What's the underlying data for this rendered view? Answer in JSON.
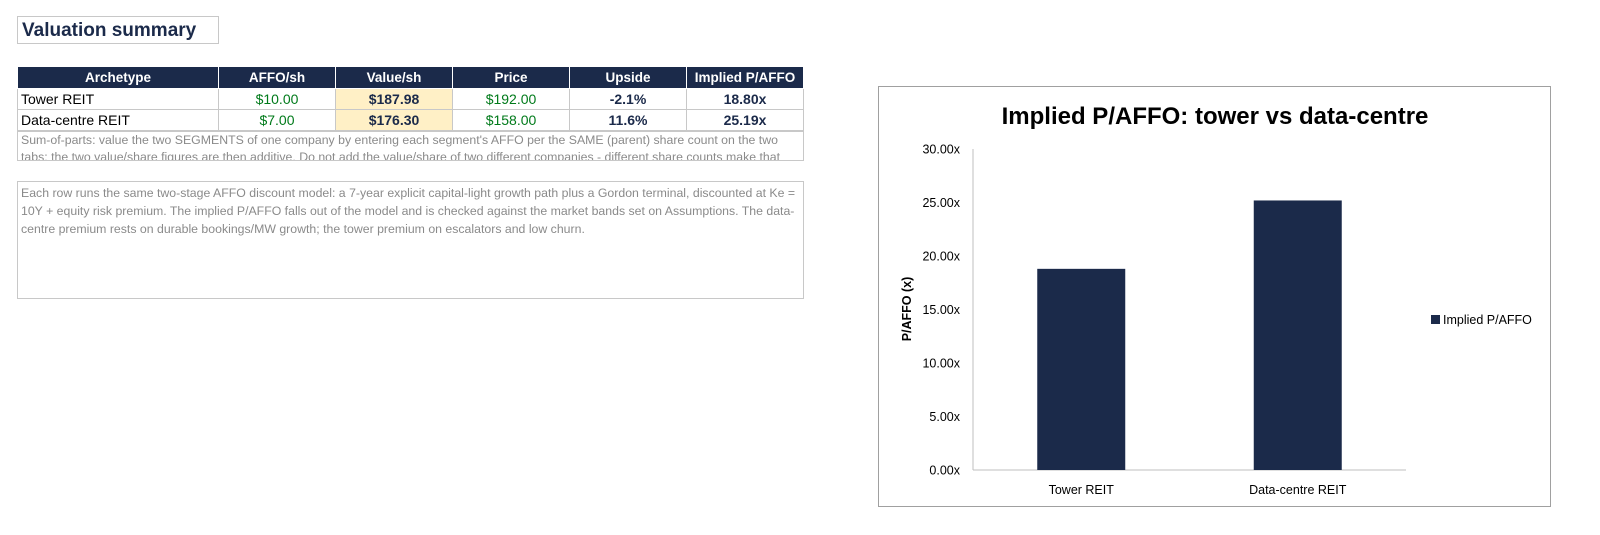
{
  "sheet": {
    "title": "Valuation summary"
  },
  "table": {
    "headers": [
      "Archetype",
      "AFFO/sh",
      "Value/sh",
      "Price",
      "Upside",
      "Implied P/AFFO"
    ],
    "rows": [
      [
        "Tower REIT",
        "$10.00",
        "$187.98",
        "$192.00",
        "-2.1%",
        "18.80x"
      ],
      [
        "Data-centre REIT",
        "$7.00",
        "$176.30",
        "$158.00",
        "11.6%",
        "25.19x"
      ]
    ]
  },
  "notes": {
    "sum_of_parts": "Sum-of-parts: value the two SEGMENTS of one company by entering each segment's AFFO per the SAME (parent) share count on the two tabs; the two value/share figures are then additive. Do not add the value/share of two different companies - different share counts make that sum",
    "model": "Each row runs the same two-stage AFFO discount model: a 7-year explicit capital-light growth path plus a Gordon terminal, discounted at Ke = 10Y + equity risk premium. The implied P/AFFO falls out of the model and is checked against the market bands set on Assumptions. The data-centre premium rests on durable bookings/MW growth; the tower premium on escalators and low churn."
  },
  "colors": {
    "header_bg": "#1b2a4a",
    "bar": "#1b2a4a",
    "value_highlight": "#fff0c6",
    "input_green": "#007a1a"
  },
  "chart_data": {
    "type": "bar",
    "title": "Implied P/AFFO: tower vs data-centre",
    "xlabel": "",
    "ylabel": "P/AFFO (x)",
    "categories": [
      "Tower REIT",
      "Data-centre REIT"
    ],
    "series": [
      {
        "name": "Implied P/AFFO",
        "values": [
          18.8,
          25.19
        ]
      }
    ],
    "ylim": [
      0,
      30
    ],
    "yticks": [
      "0.00x",
      "5.00x",
      "10.00x",
      "15.00x",
      "20.00x",
      "25.00x",
      "30.00x"
    ],
    "grid": false,
    "legend": "right"
  }
}
